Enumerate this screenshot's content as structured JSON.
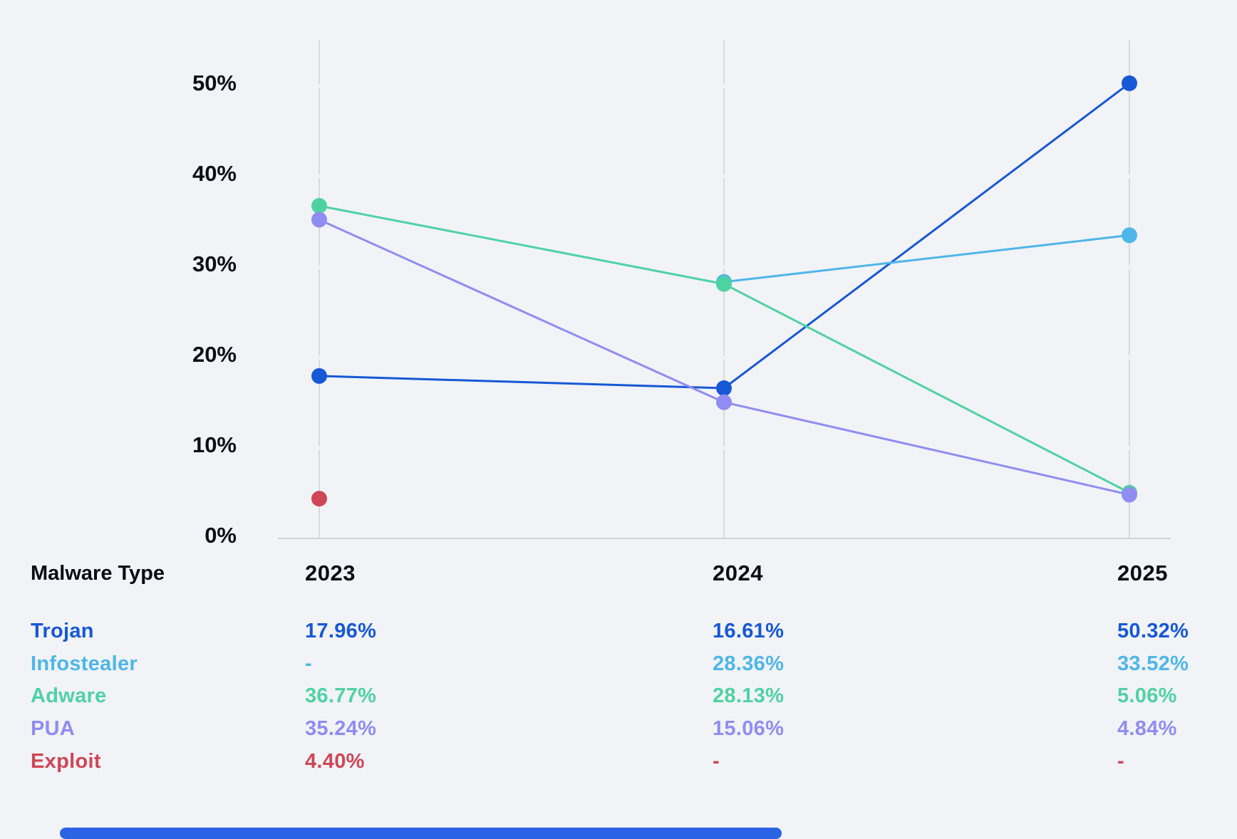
{
  "chart_data": {
    "type": "line",
    "x": [
      "2023",
      "2024",
      "2025"
    ],
    "series": [
      {
        "name": "Trojan",
        "color": "#1658d5",
        "values": [
          17.96,
          16.61,
          50.32
        ]
      },
      {
        "name": "Infostealer",
        "color": "#4eb6e8",
        "values": [
          null,
          28.36,
          33.52
        ]
      },
      {
        "name": "Adware",
        "color": "#4fd2a2",
        "values": [
          36.77,
          28.13,
          5.06
        ]
      },
      {
        "name": "PUA",
        "color": "#8f8df1",
        "values": [
          35.24,
          15.06,
          4.84
        ]
      },
      {
        "name": "Exploit",
        "color": "#cf4656",
        "values": [
          4.4,
          null,
          null
        ]
      }
    ],
    "ylabel": "",
    "xlabel": "",
    "ylim": [
      0,
      55
    ],
    "yticks": [
      "50%",
      "40%",
      "30%",
      "20%",
      "10%",
      "0%"
    ],
    "grid": "vertical-line-per-year",
    "legend_position": "table-below-chart"
  },
  "table": {
    "header_label": "Malware Type",
    "years": [
      "2023",
      "2024",
      "2025"
    ],
    "rows": [
      {
        "label": "Trojan",
        "color": "#1658d5",
        "values": [
          "17.96%",
          "16.61%",
          "50.32%"
        ]
      },
      {
        "label": "Infostealer",
        "color": "#4eb6e8",
        "values": [
          "-",
          "28.36%",
          "33.52%"
        ]
      },
      {
        "label": "Adware",
        "color": "#4fd2a2",
        "values": [
          "36.77%",
          "28.13%",
          "5.06%"
        ]
      },
      {
        "label": "PUA",
        "color": "#8f8df1",
        "values": [
          "35.24%",
          "15.06%",
          "4.84%"
        ]
      },
      {
        "label": "Exploit",
        "color": "#cf4656",
        "values": [
          "4.40%",
          "-",
          "-"
        ]
      }
    ]
  },
  "colors": {
    "background": "#f1f3f7",
    "gridline": "#d7d9dd",
    "axis_line": "#cfd2d6",
    "tick_notch": "#eef0f4",
    "text": "#0d0f16",
    "progress_bar": "#2a63e4"
  }
}
